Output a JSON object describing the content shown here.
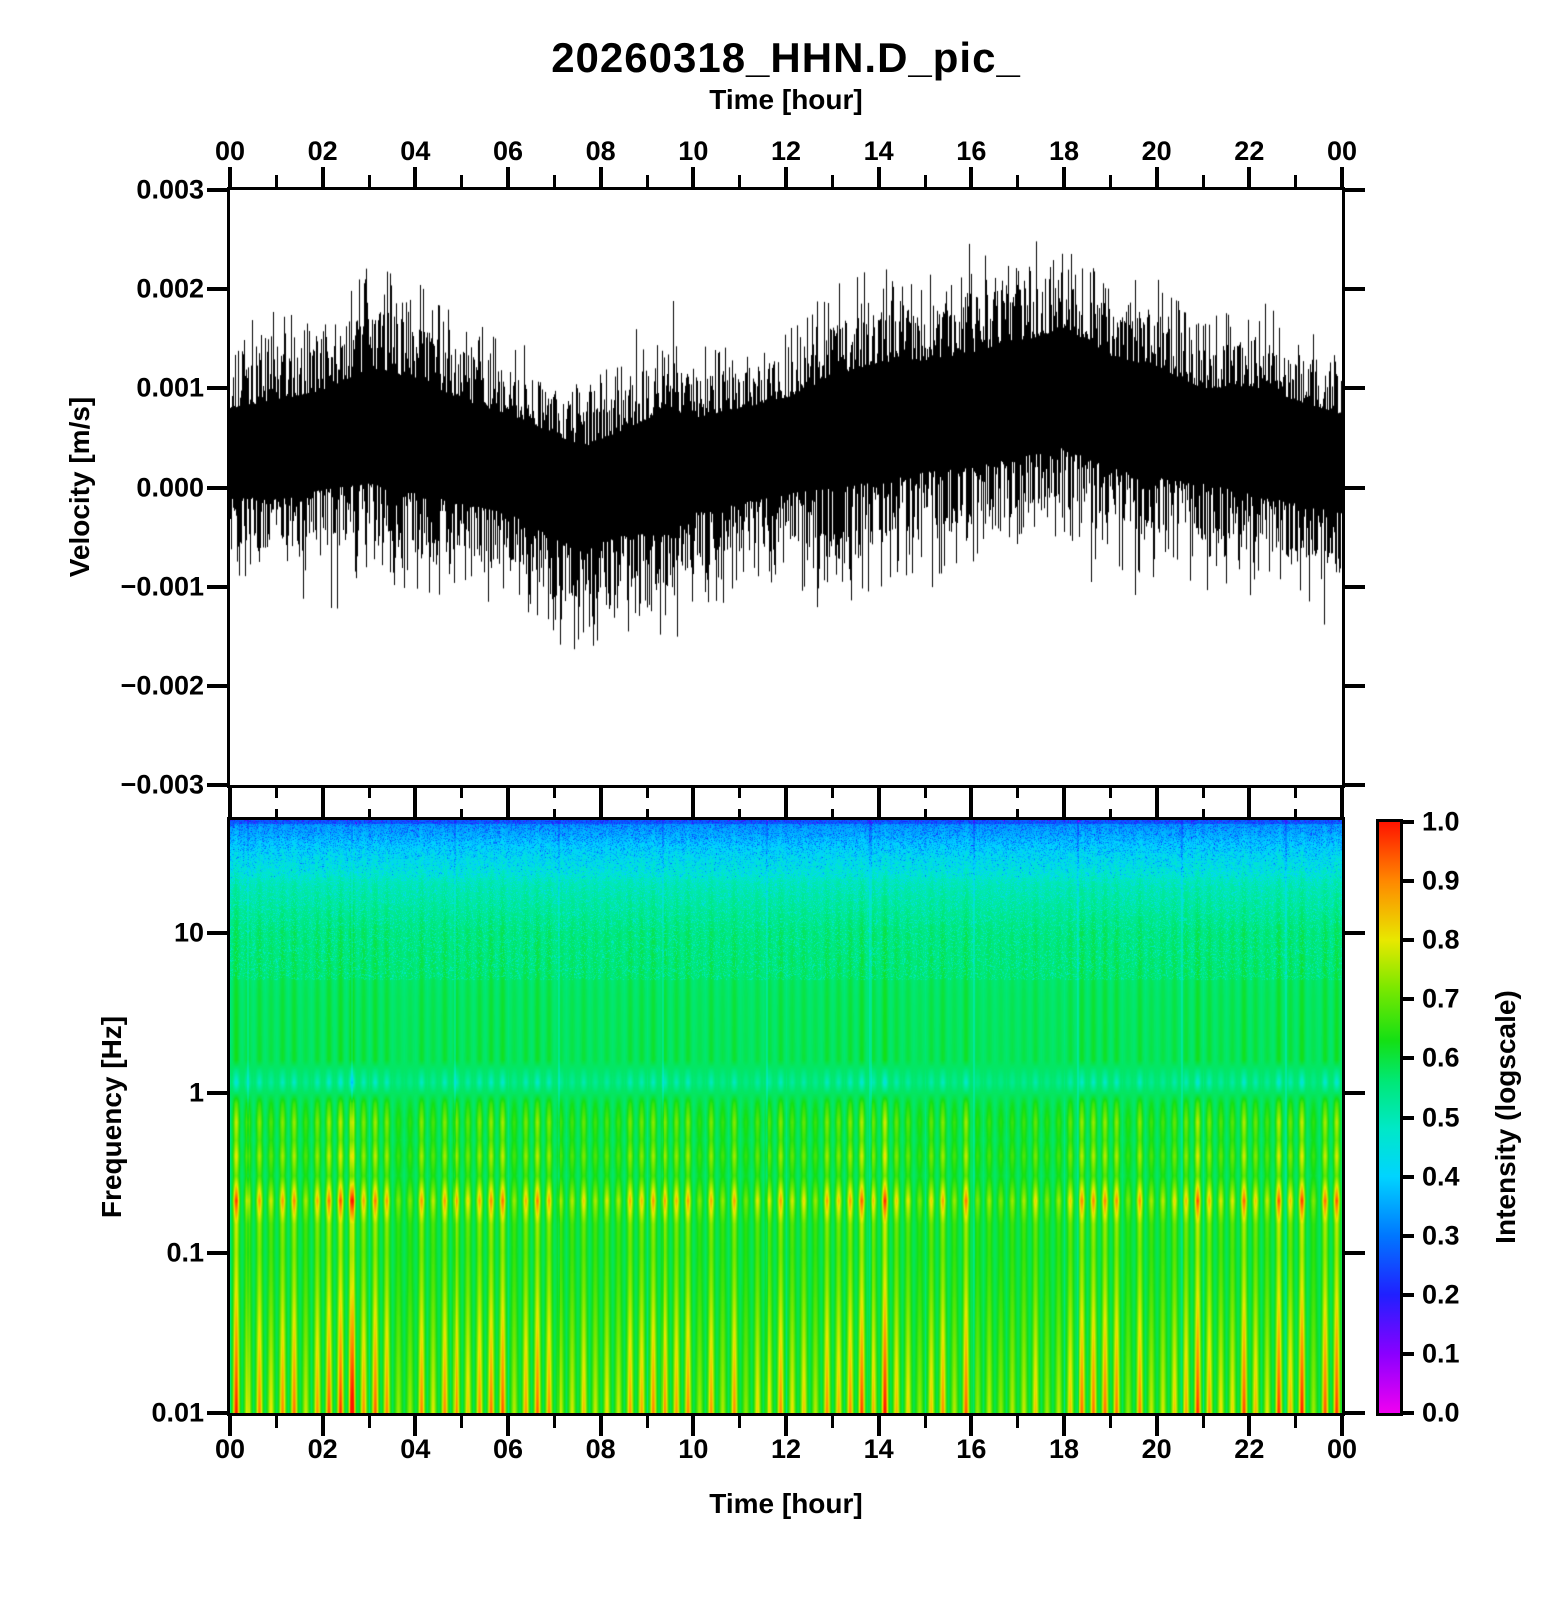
{
  "title": "20260318_HHN.D_pic_",
  "top_axis_label": "Time [hour]",
  "chart_data": [
    {
      "type": "line",
      "subtype": "seismic-waveform-envelope",
      "title": "20260318_HHN.D_pic_",
      "xlabel": "Time [hour]",
      "ylabel": "Velocity [m/s]",
      "xlim": [
        0,
        24
      ],
      "ylim": [
        -0.003,
        0.003
      ],
      "line_color": "#000000",
      "x_tick_labels": [
        "00",
        "02",
        "04",
        "06",
        "08",
        "10",
        "12",
        "14",
        "16",
        "18",
        "20",
        "22",
        "00"
      ],
      "x_tick_hours": [
        0,
        2,
        4,
        6,
        8,
        10,
        12,
        14,
        16,
        18,
        20,
        22,
        24
      ],
      "y_tick_values": [
        0.003,
        0.002,
        0.001,
        0.0,
        -0.001,
        -0.002,
        -0.003
      ],
      "y_tick_labels": [
        "0.003",
        "0.002",
        "0.001",
        "0.000",
        "−0.001",
        "−0.002",
        "−0.003"
      ],
      "envelope": {
        "hours": [
          0,
          1,
          2,
          3,
          4,
          5,
          6,
          7,
          7.6,
          8.5,
          9.5,
          10,
          11,
          12,
          13,
          14,
          15,
          16,
          17,
          18,
          19,
          20,
          21,
          22,
          23,
          24
        ],
        "mean": [
          0.0004,
          0.0004,
          0.0005,
          0.0006,
          0.0005,
          0.0004,
          0.0003,
          0.0001,
          0.0,
          0.0001,
          0.0002,
          0.0003,
          0.0004,
          0.0005,
          0.0006,
          0.0007,
          0.0008,
          0.0008,
          0.0009,
          0.001,
          0.0008,
          0.0007,
          0.0006,
          0.0005,
          0.0004,
          0.0003
        ],
        "upper": [
          0.0014,
          0.0016,
          0.0017,
          0.0021,
          0.002,
          0.0016,
          0.0014,
          0.0012,
          0.001,
          0.0013,
          0.0017,
          0.0013,
          0.0014,
          0.0015,
          0.0019,
          0.0021,
          0.002,
          0.0022,
          0.0023,
          0.0025,
          0.0021,
          0.002,
          0.0016,
          0.0018,
          0.0016,
          0.0014
        ],
        "lower": [
          -0.0008,
          -0.0009,
          -0.0008,
          -0.0008,
          -0.0009,
          -0.001,
          -0.0011,
          -0.0014,
          -0.0016,
          -0.0013,
          -0.0015,
          -0.0011,
          -0.001,
          -0.0009,
          -0.0009,
          -0.0009,
          -0.0008,
          -0.0007,
          -0.0006,
          -0.0005,
          -0.0007,
          -0.0008,
          -0.0008,
          -0.0009,
          -0.001,
          -0.0011
        ]
      }
    },
    {
      "type": "heatmap",
      "subtype": "spectrogram",
      "xlabel": "Time [hour]",
      "ylabel": "Frequency [Hz]",
      "xlim": [
        0,
        24
      ],
      "x_tick_labels": [
        "00",
        "02",
        "04",
        "06",
        "08",
        "10",
        "12",
        "14",
        "16",
        "18",
        "20",
        "22",
        "00"
      ],
      "x_tick_hours": [
        0,
        2,
        4,
        6,
        8,
        10,
        12,
        14,
        16,
        18,
        20,
        22,
        24
      ],
      "ylim_hz": [
        0.01,
        50
      ],
      "y_scale": "log",
      "y_tick_values": [
        10,
        1,
        0.1,
        0.01
      ],
      "y_tick_labels": [
        "10",
        "1",
        "0.1",
        "0.01"
      ],
      "colorbar": {
        "label": "Intensity (logscale)",
        "ticks": [
          "1.0",
          "0.9",
          "0.8",
          "0.7",
          "0.6",
          "0.5",
          "0.4",
          "0.3",
          "0.2",
          "0.1",
          "0.0"
        ],
        "tick_values": [
          1.0,
          0.9,
          0.8,
          0.7,
          0.6,
          0.5,
          0.4,
          0.3,
          0.2,
          0.1,
          0.0
        ]
      },
      "colormap": [
        [
          0.0,
          "#f000f0"
        ],
        [
          0.1,
          "#8a00ff"
        ],
        [
          0.2,
          "#2020ff"
        ],
        [
          0.3,
          "#0077ff"
        ],
        [
          0.4,
          "#00d4ff"
        ],
        [
          0.48,
          "#00e8c8"
        ],
        [
          0.56,
          "#00e878"
        ],
        [
          0.63,
          "#14e014"
        ],
        [
          0.72,
          "#7ce800"
        ],
        [
          0.8,
          "#e8e800"
        ],
        [
          0.9,
          "#ff8800"
        ],
        [
          1.0,
          "#ff1400"
        ]
      ],
      "freq_intensity_profile": [
        {
          "f": 50,
          "base": 0.33,
          "stripe": 0.02
        },
        {
          "f": 40,
          "base": 0.37,
          "stripe": 0.02
        },
        {
          "f": 30,
          "base": 0.43,
          "stripe": 0.03
        },
        {
          "f": 20,
          "base": 0.5,
          "stripe": 0.03
        },
        {
          "f": 10,
          "base": 0.555,
          "stripe": 0.04
        },
        {
          "f": 4,
          "base": 0.57,
          "stripe": 0.045
        },
        {
          "f": 1.6,
          "base": 0.575,
          "stripe": 0.05
        },
        {
          "f": 1.15,
          "base": 0.575,
          "stripe": -0.11
        },
        {
          "f": 0.85,
          "base": 0.58,
          "stripe": 0.1
        },
        {
          "f": 0.65,
          "base": 0.595,
          "stripe": 0.17
        },
        {
          "f": 0.5,
          "base": 0.585,
          "stripe": 0.13
        },
        {
          "f": 0.4,
          "base": 0.6,
          "stripe": 0.19
        },
        {
          "f": 0.3,
          "base": 0.585,
          "stripe": 0.12
        },
        {
          "f": 0.21,
          "base": 0.615,
          "stripe": 0.33
        },
        {
          "f": 0.15,
          "base": 0.6,
          "stripe": 0.17
        },
        {
          "f": 0.1,
          "base": 0.6,
          "stripe": 0.15
        },
        {
          "f": 0.06,
          "base": 0.605,
          "stripe": 0.18
        },
        {
          "f": 0.03,
          "base": 0.615,
          "stripe": 0.24
        },
        {
          "f": 0.015,
          "base": 0.625,
          "stripe": 0.3
        },
        {
          "f": 0.01,
          "base": 0.63,
          "stripe": 0.34
        }
      ],
      "stripe_period_hours": 0.25
    }
  ]
}
